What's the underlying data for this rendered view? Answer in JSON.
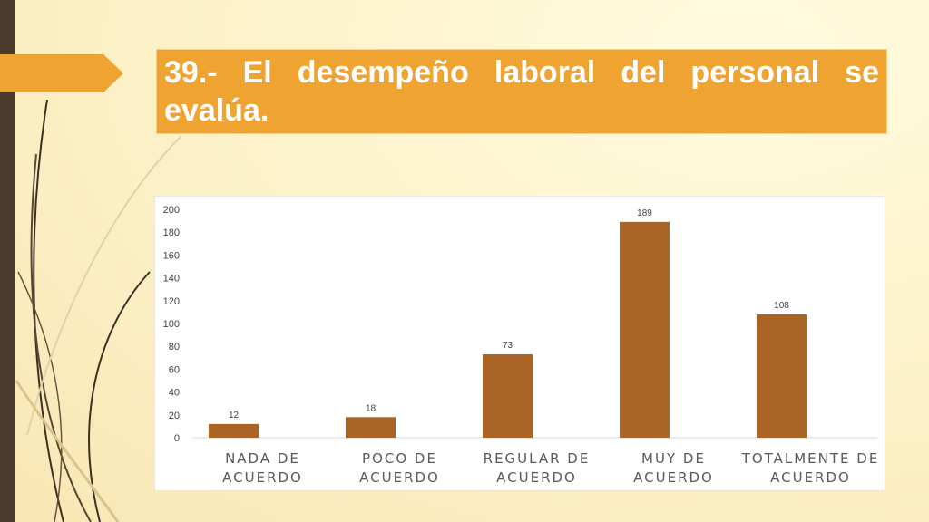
{
  "slide": {
    "title": "39.- El desempeño laboral del personal se evalúa.",
    "colors": {
      "title_bg": "#efa431",
      "bar": "#aa6425",
      "left_bar": "#4a3a2c"
    }
  },
  "chart_data": {
    "type": "bar",
    "categories": [
      [
        "NADA DE",
        "ACUERDO"
      ],
      [
        "POCO DE",
        "ACUERDO"
      ],
      [
        "REGULAR DE",
        "ACUERDO"
      ],
      [
        "MUY DE",
        "ACUERDO"
      ],
      [
        "TOTALMENTE DE",
        "ACUERDO"
      ]
    ],
    "values": [
      12,
      18,
      73,
      189,
      108
    ],
    "ylim": [
      0,
      200
    ],
    "yticks": [
      0,
      20,
      40,
      60,
      80,
      100,
      120,
      140,
      160,
      180,
      200
    ],
    "data_labels": true,
    "grid": false,
    "legend": "none"
  }
}
